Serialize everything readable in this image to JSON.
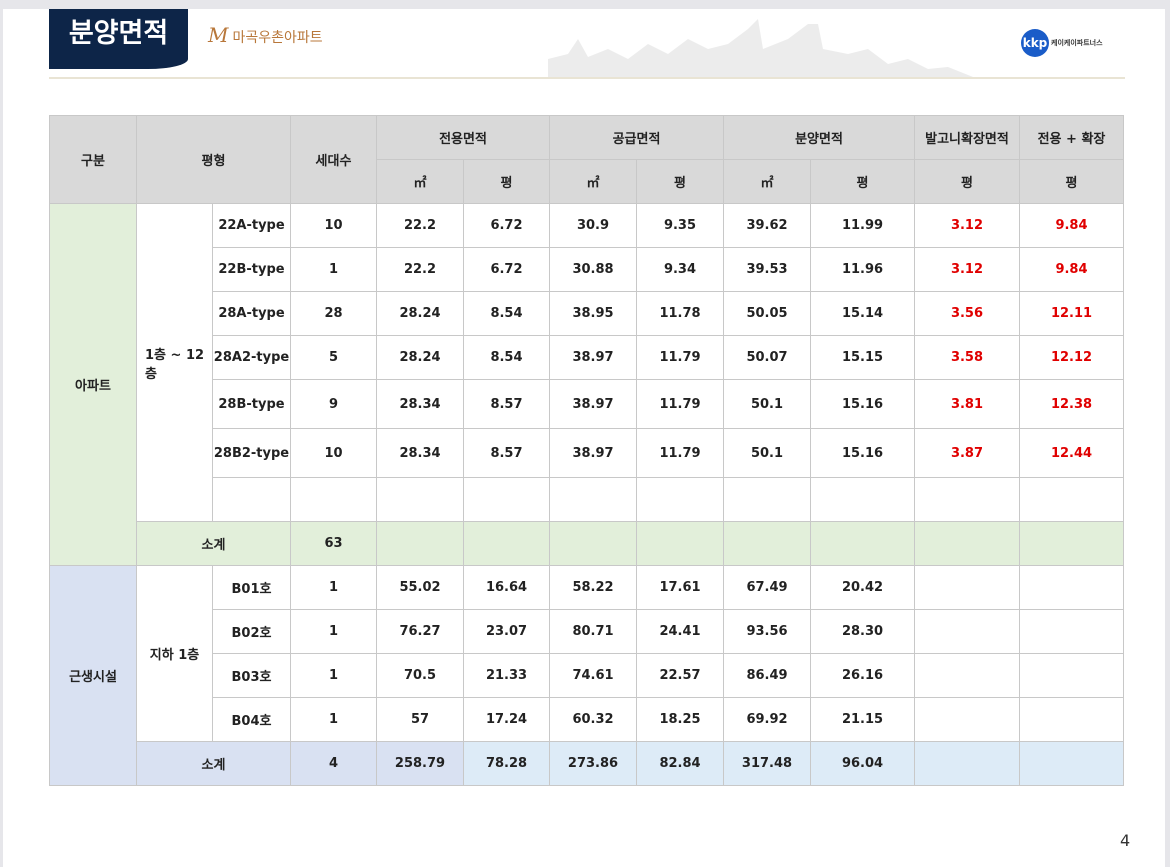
{
  "header": {
    "title": "분양면적",
    "brand": "마곡우촌아파트",
    "brand_mark": "M",
    "logo": "kkp",
    "logo_text": "케이케이파트너스"
  },
  "table": {
    "h1": [
      "구분",
      "평형",
      "세대수",
      "전용면적",
      "공급면적",
      "분양면적",
      "발고니확장면적",
      "전용 + 확장"
    ],
    "h2": [
      "㎡",
      "평",
      "㎡",
      "평",
      "㎡",
      "평",
      "평",
      "평"
    ],
    "apt": {
      "label": "아파트",
      "floor": "1층 ~ 12층",
      "rows": [
        [
          "22A-type",
          "10",
          "22.2",
          "6.72",
          "30.9",
          "9.35",
          "39.62",
          "11.99",
          "3.12",
          "9.84"
        ],
        [
          "22B-type",
          "1",
          "22.2",
          "6.72",
          "30.88",
          "9.34",
          "39.53",
          "11.96",
          "3.12",
          "9.84"
        ],
        [
          "28A-type",
          "28",
          "28.24",
          "8.54",
          "38.95",
          "11.78",
          "50.05",
          "15.14",
          "3.56",
          "12.11"
        ],
        [
          "28A2-type",
          "5",
          "28.24",
          "8.54",
          "38.97",
          "11.79",
          "50.07",
          "15.15",
          "3.58",
          "12.12"
        ],
        [
          "28B-type",
          "9",
          "28.34",
          "8.57",
          "38.97",
          "11.79",
          "50.1",
          "15.16",
          "3.81",
          "12.38"
        ],
        [
          "28B2-type",
          "10",
          "28.34",
          "8.57",
          "38.97",
          "11.79",
          "50.1",
          "15.16",
          "3.87",
          "12.44"
        ]
      ],
      "subtotal": {
        "label": "소계",
        "count": "63"
      }
    },
    "shop": {
      "label": "근생시설",
      "floor": "지하 1층",
      "rows": [
        [
          "B01호",
          "1",
          "55.02",
          "16.64",
          "58.22",
          "17.61",
          "67.49",
          "20.42"
        ],
        [
          "B02호",
          "1",
          "76.27",
          "23.07",
          "80.71",
          "24.41",
          "93.56",
          "28.30"
        ],
        [
          "B03호",
          "1",
          "70.5",
          "21.33",
          "74.61",
          "22.57",
          "86.49",
          "26.16"
        ],
        [
          "B04호",
          "1",
          "57",
          "17.24",
          "60.32",
          "18.25",
          "69.92",
          "21.15"
        ]
      ],
      "subtotal": {
        "label": "소계",
        "values": [
          "4",
          "258.79",
          "78.28",
          "273.86",
          "82.84",
          "317.48",
          "96.04"
        ]
      }
    }
  },
  "page_number": "4",
  "colors": {
    "title_bg": "#0d2548",
    "apt_bg": "#e2efda",
    "shop_bg": "#d9e1f2",
    "red": "#e00000"
  }
}
